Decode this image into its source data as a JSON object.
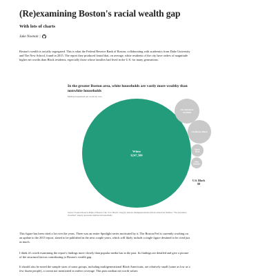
{
  "article": {
    "title": "(Re)examining Boston's racial wealth gap",
    "subtitle": "With lots of charts",
    "author": "Jake Noenan",
    "separator": "|",
    "paragraphs": [
      "Boston's wealth is racially segregated. This is what the Federal Reserve Bank of Boston, collaborating with academics from Duke University and The New School, found in 2015. The report they produced found that, on average, white residents of the city have orders of magnitude higher net worths than Black residents, especially those whose families had lived in the U.S. for many generations.",
      "This figure has been cited a lot over the years. There was an entire Spotlight series motivated by it. The Boston Fed is currently working on an update to the 2015 report, slated to be published in the next couple years, which will likely include a single figure destined to be cited just as much.",
      "I think it's worth examining the report's findings more closely than popular media has in the past. Its findings are detailed and give a picture of the structural factors contributing to Boston's wealth gap.",
      "It should also be noted the sample sizes of some groups, including multigenerational Black Americans, are relatively small (some as low as a few dozen people), a caveat not mentioned in earlier coverage. This puts median net worth values"
    ]
  },
  "chart": {
    "title": "In the greater Boston area, white households are vastly more wealthy than nonwhite households",
    "subtitle": "Median household net worth by race",
    "source": "Source: Federal Reserve Bank of Boston. The \"U.S. Black\" category denotes multigenerational African-American families. \"Not elsewhere classified\" largely represents multiracial households.",
    "colors": {
      "white": "#229c7b",
      "other": "#c9c9c9",
      "label_dark": "#222222",
      "label_light": "#ffffff"
    }
  },
  "chart_data": {
    "type": "bubble",
    "title": "In the greater Boston area, white households are vastly more wealthy than nonwhite households",
    "subtitle": "Median household net worth by race",
    "series": [
      {
        "name": "White",
        "value_label": "$247,500",
        "value": 247500,
        "highlight": true
      },
      {
        "name": "Not elsewhere classified",
        "value_label": "",
        "value": 40000,
        "highlight": false
      },
      {
        "name": "Caribbean Black",
        "value_label": "",
        "value": 32000,
        "highlight": false
      },
      {
        "name": "Puerto Rican",
        "value_label": "",
        "value": 6000,
        "highlight": false
      },
      {
        "name": "Other Hispanic",
        "value_label": "",
        "value": 4000,
        "highlight": false
      },
      {
        "name": "U.S. Black",
        "value_label": "$8",
        "value": 8,
        "highlight": false
      }
    ]
  }
}
